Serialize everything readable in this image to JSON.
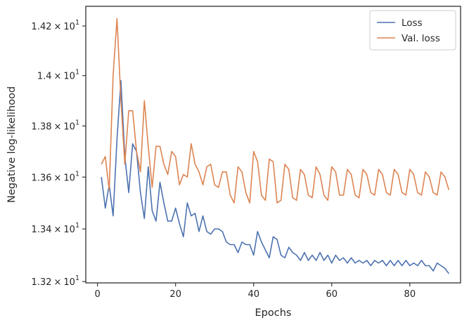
{
  "chart_data": {
    "type": "line",
    "xlabel": "Epochs",
    "ylabel": "Negative log-likelihood",
    "xlim": [
      -3,
      93
    ],
    "ylim": [
      13.195,
      14.28
    ],
    "yscale": "log",
    "grid": false,
    "legend": "top-right",
    "x_ticks": [
      {
        "value": 0,
        "label": "0"
      },
      {
        "value": 20,
        "label": "20"
      },
      {
        "value": 40,
        "label": "40"
      },
      {
        "value": 60,
        "label": "60"
      },
      {
        "value": 80,
        "label": "80"
      }
    ],
    "y_ticks": [
      {
        "value": 13.2,
        "base": "1.32",
        "sym": "×",
        "pow": "10",
        "exp": "1"
      },
      {
        "value": 13.4,
        "base": "1.34",
        "sym": "×",
        "pow": "10",
        "exp": "1"
      },
      {
        "value": 13.6,
        "base": "1.36",
        "sym": "×",
        "pow": "10",
        "exp": "1"
      },
      {
        "value": 13.8,
        "base": "1.38",
        "sym": "×",
        "pow": "10",
        "exp": "1"
      },
      {
        "value": 14.0,
        "base": "1.4",
        "sym": "×",
        "pow": "10",
        "exp": "1"
      },
      {
        "value": 14.2,
        "base": "1.42",
        "sym": "×",
        "pow": "10",
        "exp": "1"
      }
    ],
    "x": [
      1,
      2,
      3,
      4,
      5,
      6,
      7,
      8,
      9,
      10,
      11,
      12,
      13,
      14,
      15,
      16,
      17,
      18,
      19,
      20,
      21,
      22,
      23,
      24,
      25,
      26,
      27,
      28,
      29,
      30,
      31,
      32,
      33,
      34,
      35,
      36,
      37,
      38,
      39,
      40,
      41,
      42,
      43,
      44,
      45,
      46,
      47,
      48,
      49,
      50,
      51,
      52,
      53,
      54,
      55,
      56,
      57,
      58,
      59,
      60,
      61,
      62,
      63,
      64,
      65,
      66,
      67,
      68,
      69,
      70,
      71,
      72,
      73,
      74,
      75,
      76,
      77,
      78,
      79,
      80,
      81,
      82,
      83,
      84,
      85,
      86,
      87,
      88,
      89,
      90
    ],
    "series": [
      {
        "name": "Loss",
        "color": "#4c72b0",
        "values": [
          13.6,
          13.48,
          13.57,
          13.45,
          13.75,
          13.98,
          13.68,
          13.54,
          13.73,
          13.7,
          13.54,
          13.44,
          13.64,
          13.47,
          13.43,
          13.58,
          13.5,
          13.43,
          13.43,
          13.48,
          13.42,
          13.37,
          13.5,
          13.45,
          13.46,
          13.39,
          13.45,
          13.39,
          13.38,
          13.4,
          13.4,
          13.39,
          13.35,
          13.34,
          13.34,
          13.31,
          13.35,
          13.34,
          13.34,
          13.3,
          13.39,
          13.35,
          13.32,
          13.29,
          13.37,
          13.36,
          13.3,
          13.29,
          13.33,
          13.31,
          13.3,
          13.28,
          13.31,
          13.28,
          13.3,
          13.28,
          13.31,
          13.28,
          13.3,
          13.27,
          13.3,
          13.28,
          13.29,
          13.27,
          13.29,
          13.27,
          13.28,
          13.27,
          13.28,
          13.26,
          13.28,
          13.27,
          13.28,
          13.26,
          13.28,
          13.26,
          13.28,
          13.26,
          13.28,
          13.26,
          13.27,
          13.26,
          13.28,
          13.26,
          13.26,
          13.24,
          13.27,
          13.26,
          13.25,
          13.23
        ]
      },
      {
        "name": "Val. loss",
        "color": "#dd8452",
        "values": [
          13.65,
          13.68,
          13.55,
          14.0,
          14.23,
          13.9,
          13.65,
          13.86,
          13.86,
          13.7,
          13.62,
          13.9,
          13.72,
          13.56,
          13.72,
          13.72,
          13.65,
          13.61,
          13.7,
          13.68,
          13.57,
          13.61,
          13.6,
          13.73,
          13.65,
          13.62,
          13.57,
          13.64,
          13.65,
          13.57,
          13.56,
          13.62,
          13.62,
          13.53,
          13.5,
          13.64,
          13.62,
          13.54,
          13.5,
          13.7,
          13.66,
          13.53,
          13.51,
          13.67,
          13.66,
          13.5,
          13.51,
          13.65,
          13.63,
          13.52,
          13.51,
          13.63,
          13.61,
          13.53,
          13.52,
          13.64,
          13.61,
          13.53,
          13.51,
          13.64,
          13.62,
          13.53,
          13.53,
          13.63,
          13.61,
          13.53,
          13.52,
          13.63,
          13.61,
          13.54,
          13.53,
          13.63,
          13.61,
          13.54,
          13.53,
          13.63,
          13.61,
          13.54,
          13.53,
          13.63,
          13.61,
          13.54,
          13.53,
          13.62,
          13.6,
          13.54,
          13.53,
          13.62,
          13.6,
          13.55
        ]
      }
    ]
  }
}
